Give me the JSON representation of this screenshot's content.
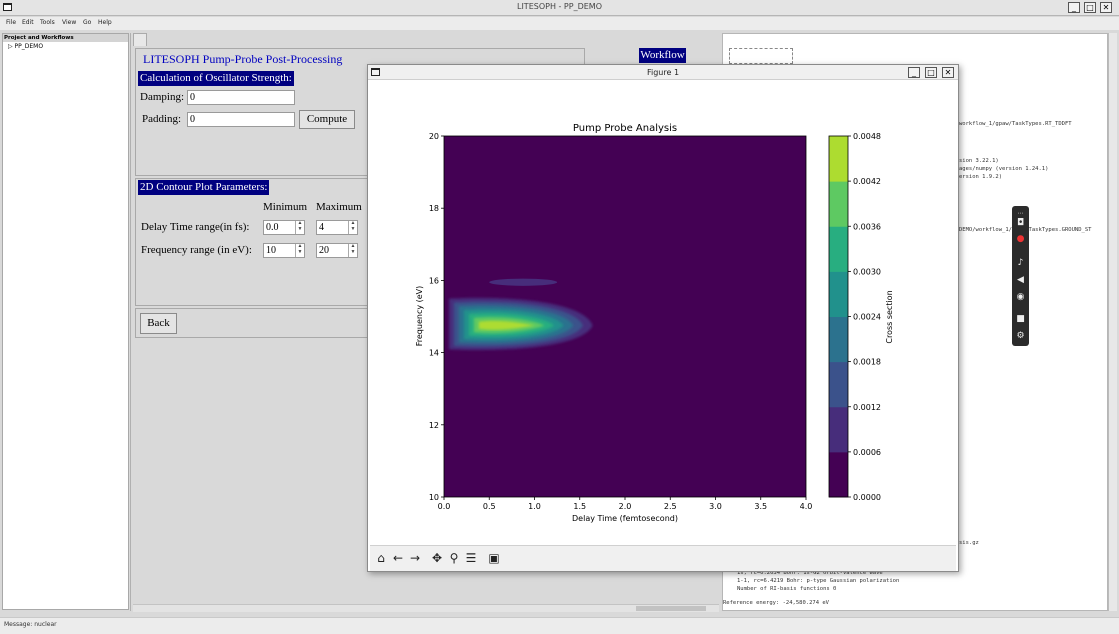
{
  "window": {
    "title": "LITESOPH - PP_DEMO"
  },
  "menu": [
    "File",
    "Edit",
    "Tools",
    "View",
    "Go",
    "Help"
  ],
  "tree": {
    "header": "Project and Workflows",
    "root": "PP_DEMO"
  },
  "postproc": {
    "heading": "LITESOPH Pump-Probe Post-Processing",
    "workflow_label": "Workflow",
    "osc_title": "Calculation of Oscillator Strength:",
    "damping_label": "Damping:",
    "damping_value": "0",
    "padding_label": "Padding:",
    "padding_value": "0",
    "compute_label": "Compute",
    "contour_title": "2D Contour Plot Parameters:",
    "min_label": "Minimum",
    "max_label": "Maximum",
    "delay_label": "Delay Time range(in fs):",
    "delay_min": "0.0",
    "delay_max": "4",
    "freq_label": "Frequency range (in eV):",
    "freq_min": "10",
    "freq_max": "20",
    "back_label": "Back"
  },
  "rightpanel": {
    "lines": [
      "workflow_1/gpaw/TaskTypes.RT_TDDFT",
      "sion 3.22.1)",
      "ages/numpy (version 1.24.1)",
      "ersion 1.9.2)",
      "DEMO/workflow_1/gpaw/TaskTypes.GROUND_ST",
      "sis.gz",
      "1s, rc=0.2034 Bohr: 1s-G2 orbit-valence wave",
      "1-1, rc=6.4219 Bohr: p-type Gaussian polarization",
      "Number of RI-basis functions 0",
      "Reference energy: -24,580.274 eV"
    ]
  },
  "status": {
    "text": "Message: nuclear"
  },
  "figure": {
    "window_title": "Figure 1",
    "toolbar_icons": [
      "home-icon",
      "back-arrow-icon",
      "forward-arrow-icon",
      "pan-icon",
      "zoom-icon",
      "configure-icon",
      "save-icon"
    ]
  },
  "chart_data": {
    "type": "heatmap",
    "title": "Pump Probe Analysis",
    "xlabel": "Delay Time (femtosecond)",
    "ylabel": "Frequency (eV)",
    "colorbar_label": "Cross section",
    "xlim": [
      0.0,
      4.0
    ],
    "ylim": [
      10,
      20
    ],
    "x_ticks": [
      "0.0",
      "0.5",
      "1.0",
      "1.5",
      "2.0",
      "2.5",
      "3.0",
      "3.5",
      "4.0"
    ],
    "y_ticks": [
      "10",
      "12",
      "14",
      "16",
      "18",
      "20"
    ],
    "colorbar_ticks": [
      "0.0000",
      "0.0006",
      "0.0012",
      "0.0018",
      "0.0024",
      "0.0030",
      "0.0036",
      "0.0042",
      "0.0048"
    ],
    "colorbar_range": [
      0.0,
      0.0048
    ],
    "levels": [
      0.0,
      0.0006,
      0.0012,
      0.0018,
      0.0024,
      0.003,
      0.0036,
      0.0042,
      0.0048
    ],
    "colors": [
      "#440154",
      "#472d7b",
      "#3b528b",
      "#2c728e",
      "#21918c",
      "#28ae80",
      "#5ec962",
      "#addc30",
      "#fde725"
    ],
    "features": [
      {
        "name": "",
        "x_range": [
          0.0,
          1.75
        ],
        "y_range": [
          14.0,
          15.6
        ],
        "peak_x": 0.8,
        "peak_y": 14.75,
        "peak_value": 0.0042
      },
      {
        "name": "",
        "x_range": [
          0.5,
          1.25
        ],
        "y_range": [
          15.85,
          16.05
        ],
        "peak_value": 0.0006
      }
    ]
  }
}
